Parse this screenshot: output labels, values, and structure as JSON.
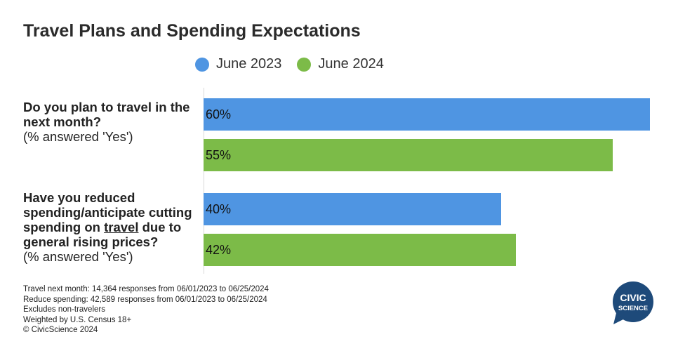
{
  "title": "Travel Plans and Spending Expectations",
  "legend": [
    {
      "name": "June 2023",
      "color": "#4f95e2"
    },
    {
      "name": "June 2024",
      "color": "#7cbb48"
    }
  ],
  "questions": [
    {
      "main": "Do you plan to travel in the next month?",
      "sub": "(% answered 'Yes')"
    },
    {
      "main_pre": "Have you reduced spending/anticipate cutting spending on ",
      "main_underlined": "travel",
      "main_post": " due to general rising prices?",
      "sub": "(% answered 'Yes')"
    }
  ],
  "chart_data": {
    "type": "bar",
    "orientation": "horizontal",
    "title": "Travel Plans and Spending Expectations",
    "categories": [
      "Do you plan to travel in the next month? (% answered 'Yes')",
      "Have you reduced spending/anticipate cutting spending on travel due to general rising prices? (% answered 'Yes')"
    ],
    "series": [
      {
        "name": "June 2023",
        "values": [
          60,
          40
        ],
        "labels": [
          "60%",
          "40%"
        ],
        "color": "#4f95e2"
      },
      {
        "name": "June 2024",
        "values": [
          55,
          42
        ],
        "labels": [
          "55%",
          "42%"
        ],
        "color": "#7cbb48"
      }
    ],
    "legend_position": "top",
    "grid": false
  },
  "notes": [
    "Travel next month: 14,364 responses from 06/01/2023 to 06/25/2024",
    "Reduce spending: 42,589 responses from 06/01/2023 to 06/25/2024",
    "Excludes non-travelers",
    "Weighted by U.S. Census 18+",
    "© CivicScience 2024"
  ],
  "logo": {
    "line1": "CIVIC",
    "line2": "SCIENCE",
    "color": "#1e4a7a"
  }
}
